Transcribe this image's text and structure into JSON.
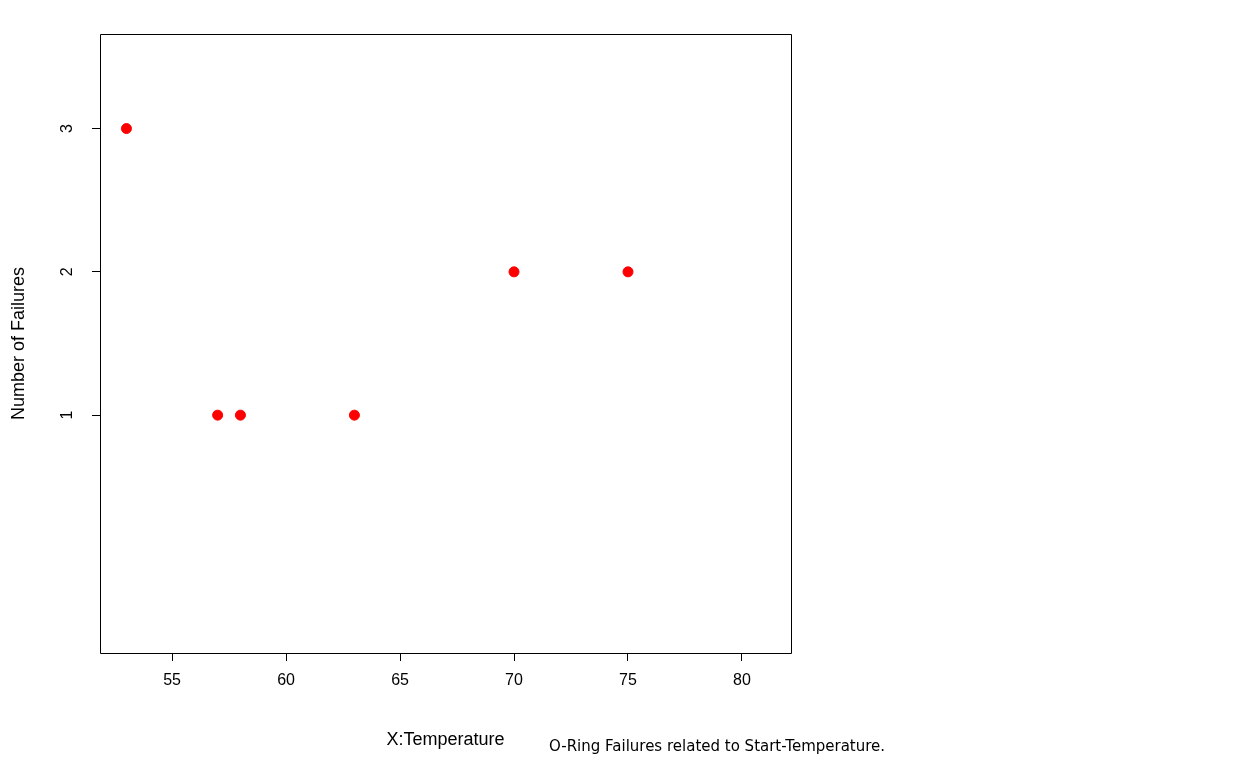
{
  "chart_data": {
    "type": "scatter",
    "xlabel": "X:Temperature",
    "ylabel": "Number of Failures",
    "annotations": [
      "O-Ring Failures related to Start-Temperature."
    ],
    "x": [
      53,
      57,
      58,
      63,
      70,
      75
    ],
    "series": [
      {
        "color": "#ff0000",
        "values": [
          3,
          1,
          1,
          1,
          2,
          2
        ]
      }
    ],
    "xlim": [
      51.84,
      82.15
    ],
    "xticks": [
      55,
      60,
      65,
      70,
      75,
      80
    ],
    "ylim": [
      -0.66,
      3.66
    ],
    "yticks": [
      1,
      2,
      3
    ],
    "marker": "circle",
    "grid": false,
    "legend": false
  }
}
